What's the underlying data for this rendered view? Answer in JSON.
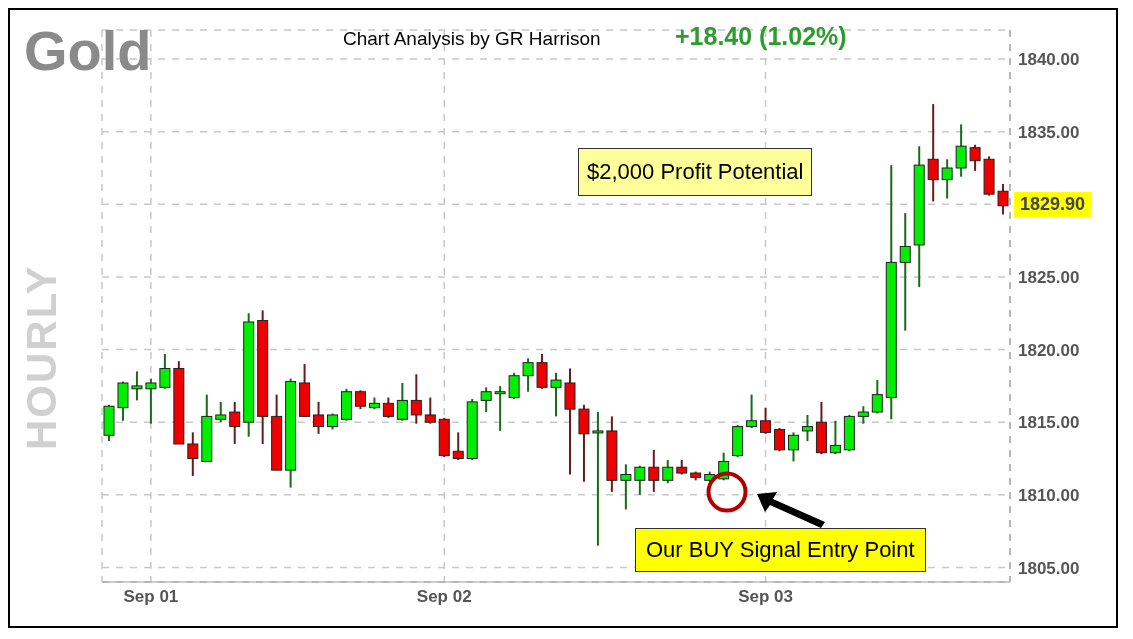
{
  "chart_data": {
    "type": "candlestick",
    "title": "Gold",
    "subtitle": "HOURLY",
    "annotations": [
      "Chart Analysis by GR Harrison",
      "+18.40 (1.02%)",
      "$2,000 Profit Potential",
      "Our BUY Signal Entry Point",
      "1829.90"
    ],
    "categories": [
      null,
      null,
      null,
      "Sep 01",
      null,
      null,
      null,
      null,
      null,
      null,
      null,
      null,
      null,
      null,
      null,
      null,
      null,
      null,
      null,
      null,
      null,
      null,
      null,
      null,
      "Sep 02",
      null,
      null,
      null,
      null,
      null,
      null,
      null,
      null,
      null,
      null,
      null,
      null,
      null,
      null,
      null,
      null,
      null,
      null,
      null,
      null,
      null,
      null,
      "Sep 03",
      null,
      null,
      null,
      null,
      null,
      null,
      null,
      null,
      null,
      null,
      null,
      null,
      null,
      null,
      null,
      null,
      null
    ],
    "ohlc": [
      [
        1814.1,
        1816.2,
        1813.7,
        1816.1
      ],
      [
        1816.0,
        1817.8,
        1815.1,
        1817.7
      ],
      [
        1817.3,
        1818.5,
        1816.5,
        1817.5
      ],
      [
        1817.3,
        1818.0,
        1814.9,
        1817.7
      ],
      [
        1817.4,
        1819.7,
        1817.3,
        1818.7
      ],
      [
        1818.7,
        1819.2,
        1813.5,
        1813.5
      ],
      [
        1813.5,
        1814.3,
        1811.3,
        1812.5
      ],
      [
        1812.3,
        1816.9,
        1812.3,
        1815.4
      ],
      [
        1815.2,
        1816.4,
        1815.0,
        1815.5
      ],
      [
        1815.7,
        1816.4,
        1813.5,
        1814.7
      ],
      [
        1815.0,
        1822.5,
        1814.0,
        1821.9
      ],
      [
        1822.0,
        1822.7,
        1813.5,
        1815.4
      ],
      [
        1815.4,
        1816.9,
        1811.7,
        1811.7
      ],
      [
        1811.7,
        1818.0,
        1810.5,
        1817.8
      ],
      [
        1817.7,
        1819.0,
        1815.4,
        1815.4
      ],
      [
        1815.5,
        1816.4,
        1814.2,
        1814.7
      ],
      [
        1814.7,
        1815.6,
        1814.5,
        1815.5
      ],
      [
        1815.2,
        1817.3,
        1815.1,
        1817.1
      ],
      [
        1817.1,
        1817.2,
        1815.9,
        1816.1
      ],
      [
        1816.0,
        1816.7,
        1815.9,
        1816.3
      ],
      [
        1816.3,
        1816.7,
        1815.3,
        1815.4
      ],
      [
        1815.2,
        1817.7,
        1815.1,
        1816.5
      ],
      [
        1816.5,
        1818.3,
        1814.9,
        1815.5
      ],
      [
        1815.5,
        1816.7,
        1814.9,
        1815.0
      ],
      [
        1815.2,
        1815.3,
        1812.6,
        1812.7
      ],
      [
        1813.0,
        1814.3,
        1812.4,
        1812.5
      ],
      [
        1812.5,
        1816.6,
        1812.4,
        1816.4
      ],
      [
        1816.5,
        1817.4,
        1815.7,
        1817.1
      ],
      [
        1817.0,
        1817.5,
        1814.4,
        1817.1
      ],
      [
        1816.7,
        1818.4,
        1816.6,
        1818.2
      ],
      [
        1818.2,
        1819.4,
        1817.1,
        1819.1
      ],
      [
        1819.1,
        1819.7,
        1817.3,
        1817.4
      ],
      [
        1817.4,
        1818.4,
        1815.4,
        1817.9
      ],
      [
        1817.7,
        1818.7,
        1811.4,
        1815.9
      ],
      [
        1815.9,
        1816.2,
        1810.9,
        1814.2
      ],
      [
        1814.3,
        1815.7,
        1806.5,
        1814.4
      ],
      [
        1814.4,
        1815.4,
        1810.2,
        1811.0
      ],
      [
        1811.0,
        1812.1,
        1809.0,
        1811.4
      ],
      [
        1811.0,
        1812.0,
        1810.0,
        1811.9
      ],
      [
        1811.9,
        1813.1,
        1810.2,
        1811.0
      ],
      [
        1811.0,
        1812.4,
        1810.8,
        1811.9
      ],
      [
        1811.9,
        1812.4,
        1811.4,
        1811.5
      ],
      [
        1811.5,
        1811.6,
        1811.0,
        1811.2
      ],
      [
        1811.0,
        1811.6,
        1810.9,
        1811.4
      ],
      [
        1811.1,
        1812.9,
        1811.0,
        1812.3
      ],
      [
        1812.7,
        1814.8,
        1812.6,
        1814.7
      ],
      [
        1814.7,
        1816.9,
        1814.6,
        1815.1
      ],
      [
        1815.1,
        1816.0,
        1814.2,
        1814.3
      ],
      [
        1814.5,
        1814.6,
        1813.0,
        1813.1
      ],
      [
        1813.1,
        1814.3,
        1812.3,
        1814.1
      ],
      [
        1814.4,
        1815.5,
        1813.7,
        1814.7
      ],
      [
        1815.0,
        1816.4,
        1812.8,
        1812.9
      ],
      [
        1812.9,
        1815.1,
        1812.8,
        1813.4
      ],
      [
        1813.1,
        1815.5,
        1813.0,
        1815.4
      ],
      [
        1815.4,
        1816.1,
        1814.9,
        1815.7
      ],
      [
        1815.7,
        1817.9,
        1815.6,
        1816.9
      ],
      [
        1816.7,
        1832.7,
        1815.2,
        1826.0
      ],
      [
        1826.0,
        1829.4,
        1821.3,
        1827.1
      ],
      [
        1827.2,
        1834.0,
        1824.3,
        1832.7
      ],
      [
        1833.1,
        1836.9,
        1830.2,
        1831.7
      ],
      [
        1831.7,
        1833.1,
        1830.4,
        1832.5
      ],
      [
        1832.5,
        1835.5,
        1831.9,
        1834.0
      ],
      [
        1833.9,
        1834.1,
        1832.3,
        1833.0
      ],
      [
        1833.1,
        1833.3,
        1830.6,
        1830.7
      ],
      [
        1830.9,
        1831.4,
        1829.3,
        1829.9
      ]
    ],
    "ylim": [
      1804,
      1842
    ],
    "yticks": [
      {
        "value": 1805,
        "label": "1805.00"
      },
      {
        "value": 1810,
        "label": "1810.00"
      },
      {
        "value": 1815,
        "label": "1815.00"
      },
      {
        "value": 1820,
        "label": "1820.00"
      },
      {
        "value": 1825,
        "label": "1825.00"
      },
      {
        "value": 1830,
        "label": null
      },
      {
        "value": 1835,
        "label": "1835.00"
      },
      {
        "value": 1840,
        "label": "1840.00"
      }
    ],
    "grid": true
  }
}
